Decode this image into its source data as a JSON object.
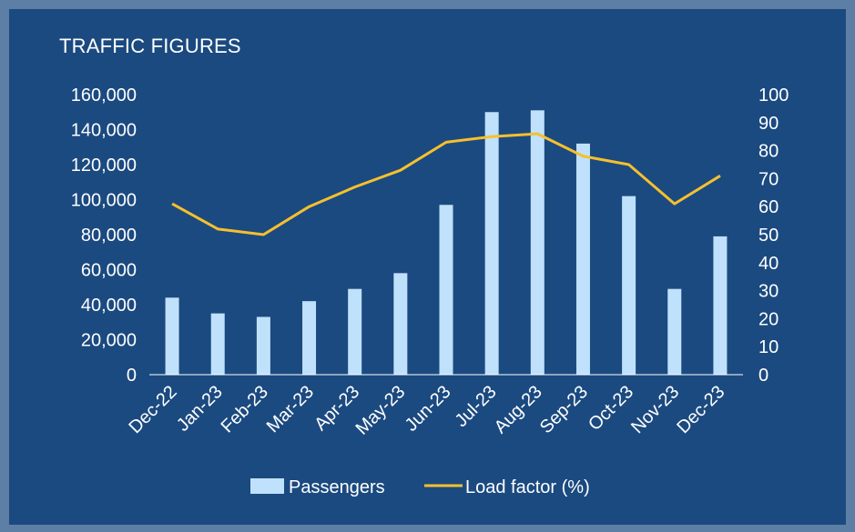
{
  "chart_data": {
    "type": "bar",
    "title": "TRAFFIC FIGURES",
    "categories": [
      "Dec-22",
      "Jan-23",
      "Feb-23",
      "Mar-23",
      "Apr-23",
      "May-23",
      "Jun-23",
      "Jul-23",
      "Aug-23",
      "Sep-23",
      "Oct-23",
      "Nov-23",
      "Dec-23"
    ],
    "series": [
      {
        "name": "Passengers",
        "type": "bar",
        "axis": "left",
        "color": "#bfe1fb",
        "values": [
          44000,
          35000,
          33000,
          42000,
          49000,
          58000,
          97000,
          150000,
          151000,
          132000,
          102000,
          49000,
          79000
        ]
      },
      {
        "name": "Load factor (%)",
        "type": "line",
        "axis": "right",
        "color": "#f6c02d",
        "values": [
          61,
          52,
          50,
          60,
          67,
          73,
          83,
          85,
          86,
          78,
          75,
          61,
          71
        ]
      }
    ],
    "y_left": {
      "ylim": [
        0,
        160000
      ],
      "ticks": [
        0,
        20000,
        40000,
        60000,
        80000,
        100000,
        120000,
        140000,
        160000
      ],
      "tick_labels": [
        "0",
        "20,000",
        "40,000",
        "60,000",
        "80,000",
        "100,000",
        "120,000",
        "140,000",
        "160,000"
      ]
    },
    "y_right": {
      "ylim": [
        0,
        100
      ],
      "ticks": [
        0,
        10,
        20,
        30,
        40,
        50,
        60,
        70,
        80,
        90,
        100
      ],
      "tick_labels": [
        "0",
        "10",
        "20",
        "30",
        "40",
        "50",
        "60",
        "70",
        "80",
        "90",
        "100"
      ]
    },
    "grid": false,
    "legend_position": "bottom-center",
    "colors": {
      "background": "#1b4a80",
      "text": "#ffffff",
      "axis": "#ffffff"
    }
  }
}
